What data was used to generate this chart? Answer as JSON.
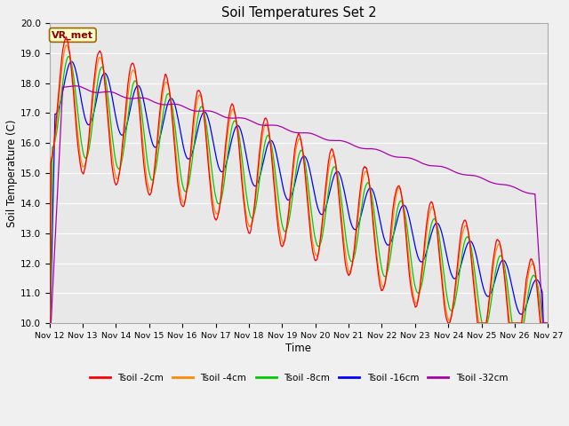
{
  "title": "Soil Temperatures Set 2",
  "xlabel": "Time",
  "ylabel": "Soil Temperature (C)",
  "ylim": [
    10.0,
    20.0
  ],
  "yticks": [
    10.0,
    11.0,
    12.0,
    13.0,
    14.0,
    15.0,
    16.0,
    17.0,
    18.0,
    19.0,
    20.0
  ],
  "xtick_labels": [
    "Nov 12",
    "Nov 13",
    "Nov 14",
    "Nov 15",
    "Nov 16",
    "Nov 17",
    "Nov 18",
    "Nov 19",
    "Nov 20",
    "Nov 21",
    "Nov 22",
    "Nov 23",
    "Nov 24",
    "Nov 25",
    "Nov 26",
    "Nov 27"
  ],
  "annotation_text": "VR_met",
  "annotation_bg": "#ffffcc",
  "annotation_border": "#996600",
  "annotation_text_color": "#880000",
  "colors": {
    "Tsoil -2cm": "#ff0000",
    "Tsoil -4cm": "#ff8800",
    "Tsoil -8cm": "#00cc00",
    "Tsoil -16cm": "#0000ff",
    "Tsoil -32cm": "#aa00aa"
  },
  "plot_bg": "#e8e8e8",
  "fig_bg": "#f0f0f0",
  "grid_color": "#ffffff",
  "n_points": 1500
}
